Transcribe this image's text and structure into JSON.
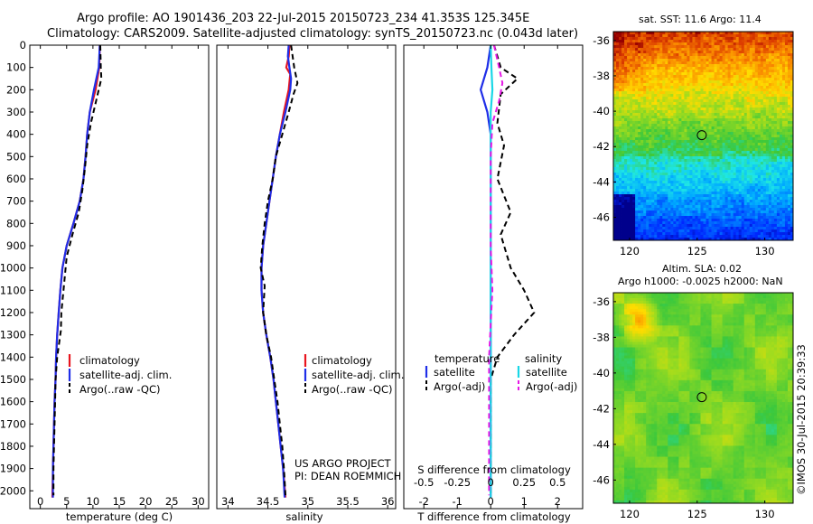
{
  "header": {
    "line1": "Argo profile: AO 1901436_203 22-Jul-2015 20150723_234 41.353S 125.345E",
    "line2": "Climatology: CARS2009. Satellite-adjusted climatology: synTS_20150723.nc (0.043d later)"
  },
  "sst_title": "sat. SST: 11.6 Argo: 11.4",
  "sla_title1": "Altim. SLA: 0.02",
  "sla_title2": "Argo h1000: -0.0025 h2000: NaN",
  "project_line1": "US ARGO PROJECT",
  "project_line2": "PI: DEAN ROEMMICH",
  "footer_stamp": "©IMOS 30-Jul-2015 20:39:33",
  "colors": {
    "climatology": "#e8141e",
    "satellite": "#1f2ee8",
    "argo": "#000000",
    "s_satellite": "#19d7e6",
    "s_argo": "#e619e6",
    "marker": "#000000"
  },
  "chart_data": [
    {
      "type": "line",
      "panel": "temperature",
      "xlabel": "temperature (deg C)",
      "xticks": [
        "0",
        "5",
        "10",
        "15",
        "20",
        "25",
        "30"
      ],
      "xlim": [
        -2,
        32
      ],
      "ylim": [
        2080,
        0
      ],
      "yticks": [
        "0",
        "100",
        "200",
        "300",
        "400",
        "500",
        "600",
        "700",
        "800",
        "900",
        "1000",
        "1100",
        "1200",
        "1300",
        "1400",
        "1500",
        "1600",
        "1700",
        "1800",
        "1900",
        "2000"
      ],
      "legend": [
        "climatology",
        "satellite-adj. clim.",
        "Argo(..raw -QC)"
      ],
      "series": [
        {
          "name": "climatology",
          "color": "#e8141e",
          "dash": false,
          "points": [
            [
              11.3,
              0
            ],
            [
              11.2,
              100
            ],
            [
              10.5,
              200
            ],
            [
              9.4,
              300
            ],
            [
              8.9,
              400
            ],
            [
              8.6,
              500
            ],
            [
              8.2,
              600
            ],
            [
              7.5,
              700
            ],
            [
              6.3,
              800
            ],
            [
              5.0,
              900
            ],
            [
              4.2,
              1000
            ],
            [
              3.8,
              1100
            ],
            [
              3.5,
              1200
            ],
            [
              3.2,
              1300
            ],
            [
              3.0,
              1400
            ],
            [
              2.9,
              1500
            ],
            [
              2.7,
              1600
            ],
            [
              2.6,
              1700
            ],
            [
              2.5,
              1800
            ],
            [
              2.4,
              1900
            ],
            [
              2.3,
              2030
            ]
          ]
        },
        {
          "name": "satellite-adj. clim.",
          "color": "#1f2ee8",
          "dash": false,
          "points": [
            [
              11.3,
              0
            ],
            [
              11.1,
              100
            ],
            [
              10.2,
              200
            ],
            [
              9.4,
              300
            ],
            [
              8.9,
              400
            ],
            [
              8.6,
              500
            ],
            [
              8.2,
              600
            ],
            [
              7.5,
              700
            ],
            [
              6.3,
              800
            ],
            [
              5.0,
              900
            ],
            [
              4.2,
              1000
            ],
            [
              3.8,
              1100
            ],
            [
              3.5,
              1200
            ],
            [
              3.2,
              1300
            ],
            [
              3.0,
              1400
            ],
            [
              2.9,
              1500
            ],
            [
              2.7,
              1600
            ],
            [
              2.6,
              1700
            ],
            [
              2.5,
              1800
            ],
            [
              2.4,
              1900
            ],
            [
              2.4,
              2030
            ]
          ]
        },
        {
          "name": "Argo(..raw -QC)",
          "color": "#000000",
          "dash": true,
          "points": [
            [
              11.4,
              0
            ],
            [
              11.5,
              100
            ],
            [
              11.6,
              150
            ],
            [
              10.6,
              250
            ],
            [
              9.6,
              350
            ],
            [
              8.9,
              450
            ],
            [
              8.5,
              550
            ],
            [
              8.0,
              650
            ],
            [
              7.3,
              750
            ],
            [
              6.1,
              850
            ],
            [
              5.0,
              950
            ],
            [
              4.4,
              1100
            ],
            [
              4.0,
              1200
            ],
            [
              3.9,
              1280
            ],
            [
              3.2,
              1400
            ],
            [
              2.9,
              1500
            ],
            [
              2.8,
              1600
            ],
            [
              2.7,
              1700
            ],
            [
              2.6,
              1800
            ],
            [
              2.5,
              1900
            ],
            [
              2.5,
              2020
            ]
          ]
        }
      ]
    },
    {
      "type": "line",
      "panel": "salinity",
      "xlabel": "salinity",
      "xticks": [
        "34",
        "34.5",
        "35",
        "35.5",
        "36"
      ],
      "xlim": [
        33.86,
        36.1
      ],
      "ylim": [
        2080,
        0
      ],
      "legend": [
        "climatology",
        "satellite-adj. clim.",
        "Argo(..raw -QC)"
      ],
      "series": [
        {
          "name": "climatology",
          "color": "#e8141e",
          "dash": false,
          "points": [
            [
              34.77,
              0
            ],
            [
              34.76,
              50
            ],
            [
              34.73,
              100
            ],
            [
              34.78,
              130
            ],
            [
              34.76,
              200
            ],
            [
              34.7,
              300
            ],
            [
              34.65,
              400
            ],
            [
              34.6,
              500
            ],
            [
              34.56,
              600
            ],
            [
              34.52,
              700
            ],
            [
              34.48,
              800
            ],
            [
              34.44,
              900
            ],
            [
              34.42,
              1000
            ],
            [
              34.42,
              1100
            ],
            [
              34.44,
              1200
            ],
            [
              34.48,
              1300
            ],
            [
              34.53,
              1400
            ],
            [
              34.57,
              1500
            ],
            [
              34.6,
              1600
            ],
            [
              34.63,
              1700
            ],
            [
              34.66,
              1800
            ],
            [
              34.69,
              1900
            ],
            [
              34.72,
              2030
            ]
          ]
        },
        {
          "name": "satellite-adj. clim.",
          "color": "#1f2ee8",
          "dash": false,
          "points": [
            [
              34.76,
              0
            ],
            [
              34.75,
              50
            ],
            [
              34.77,
              100
            ],
            [
              34.79,
              150
            ],
            [
              34.78,
              200
            ],
            [
              34.72,
              300
            ],
            [
              34.65,
              400
            ],
            [
              34.6,
              500
            ],
            [
              34.56,
              600
            ],
            [
              34.52,
              700
            ],
            [
              34.48,
              800
            ],
            [
              34.44,
              900
            ],
            [
              34.42,
              1000
            ],
            [
              34.42,
              1100
            ],
            [
              34.44,
              1200
            ],
            [
              34.48,
              1300
            ],
            [
              34.53,
              1400
            ],
            [
              34.57,
              1500
            ],
            [
              34.6,
              1600
            ],
            [
              34.63,
              1700
            ],
            [
              34.66,
              1800
            ],
            [
              34.69,
              1900
            ],
            [
              34.71,
              2030
            ]
          ]
        },
        {
          "name": "Argo(..raw -QC)",
          "color": "#000000",
          "dash": true,
          "points": [
            [
              34.79,
              0
            ],
            [
              34.83,
              100
            ],
            [
              34.87,
              170
            ],
            [
              34.82,
              220
            ],
            [
              34.76,
              300
            ],
            [
              34.68,
              400
            ],
            [
              34.6,
              500
            ],
            [
              34.56,
              600
            ],
            [
              34.5,
              700
            ],
            [
              34.46,
              800
            ],
            [
              34.43,
              900
            ],
            [
              34.41,
              1000
            ],
            [
              34.46,
              1080
            ],
            [
              34.44,
              1200
            ],
            [
              34.48,
              1300
            ],
            [
              34.54,
              1400
            ],
            [
              34.58,
              1500
            ],
            [
              34.62,
              1600
            ],
            [
              34.65,
              1700
            ],
            [
              34.68,
              1800
            ],
            [
              34.7,
              1900
            ],
            [
              34.72,
              2020
            ]
          ]
        }
      ]
    },
    {
      "type": "line",
      "panel": "difference",
      "xlabel": "T difference from climatology",
      "xticks": [
        "-2",
        "-1",
        "0",
        "1",
        "2"
      ],
      "xlim": [
        -2.6,
        2.75
      ],
      "s_label": "S difference from climatology",
      "s_ticks": [
        "-0.5",
        "-0.25",
        "0",
        "0.25",
        "0.5"
      ],
      "ylim": [
        2080,
        0
      ],
      "legend_headers": [
        "temperature",
        "salinity"
      ],
      "legend": [
        "satellite",
        "Argo(-adj)",
        "satellite",
        "Argo(-adj)"
      ],
      "series": [
        {
          "name": "satellite",
          "color": "#1f2ee8",
          "dash": false,
          "points": [
            [
              0,
              0
            ],
            [
              -0.1,
              100
            ],
            [
              -0.3,
              200
            ],
            [
              -0.1,
              300
            ],
            [
              0,
              400
            ],
            [
              0,
              600
            ],
            [
              0,
              800
            ],
            [
              0,
              1000
            ],
            [
              0,
              1200
            ],
            [
              0,
              1400
            ],
            [
              0,
              1600
            ],
            [
              0,
              1800
            ],
            [
              0,
              2030
            ]
          ]
        },
        {
          "name": "Argo(-adj)",
          "color": "#000000",
          "dash": true,
          "points": [
            [
              0.1,
              0
            ],
            [
              0.3,
              100
            ],
            [
              0.8,
              150
            ],
            [
              0.3,
              220
            ],
            [
              0.2,
              350
            ],
            [
              0.4,
              450
            ],
            [
              0.2,
              600
            ],
            [
              0.6,
              750
            ],
            [
              0.3,
              850
            ],
            [
              0.6,
              1000
            ],
            [
              1.0,
              1100
            ],
            [
              1.3,
              1200
            ],
            [
              0.7,
              1300
            ],
            [
              0.2,
              1400
            ],
            [
              0,
              1500
            ],
            [
              0,
              1600
            ],
            [
              0,
              1800
            ],
            [
              0,
              2020
            ]
          ]
        },
        {
          "name": "satellite",
          "color": "#19d7e6",
          "dash": false,
          "points": [
            [
              0,
              0
            ],
            [
              0.02,
              100
            ],
            [
              0.05,
              200
            ],
            [
              0.0,
              300
            ],
            [
              0,
              500
            ],
            [
              0,
              700
            ],
            [
              0,
              900
            ],
            [
              0,
              1100
            ],
            [
              0,
              1300
            ],
            [
              0,
              1500
            ],
            [
              0,
              1700
            ],
            [
              0,
              1900
            ],
            [
              0,
              2030
            ]
          ]
        },
        {
          "name": "Argo(-adj)",
          "color": "#e619e6",
          "dash": true,
          "points": [
            [
              0.1,
              0
            ],
            [
              0.25,
              100
            ],
            [
              0.35,
              170
            ],
            [
              0.25,
              250
            ],
            [
              0.05,
              350
            ],
            [
              0,
              500
            ],
            [
              0,
              700
            ],
            [
              0,
              900
            ],
            [
              0.05,
              1100
            ],
            [
              0,
              1250
            ],
            [
              -0.05,
              1400
            ],
            [
              -0.05,
              1600
            ],
            [
              -0.05,
              1800
            ],
            [
              -0.05,
              2020
            ]
          ]
        }
      ]
    },
    {
      "type": "heatmap",
      "panel": "sst-map",
      "title": "sat. SST: 11.6 Argo: 11.4",
      "xticks": [
        "120",
        "125",
        "130"
      ],
      "yticks": [
        "-36",
        "-38",
        "-40",
        "-42",
        "-44",
        "-46"
      ],
      "xlim": [
        118.8,
        132.1
      ],
      "ylim": [
        -35.5,
        -47.3
      ],
      "marker": [
        125.345,
        -41.353
      ]
    },
    {
      "type": "heatmap",
      "panel": "sla-map",
      "xticks": [
        "120",
        "125",
        "130"
      ],
      "yticks": [
        "-36",
        "-38",
        "-40",
        "-42",
        "-44",
        "-46"
      ],
      "xlim": [
        118.8,
        132.1
      ],
      "ylim": [
        -35.5,
        -47.3
      ],
      "marker": [
        125.345,
        -41.353
      ]
    }
  ]
}
